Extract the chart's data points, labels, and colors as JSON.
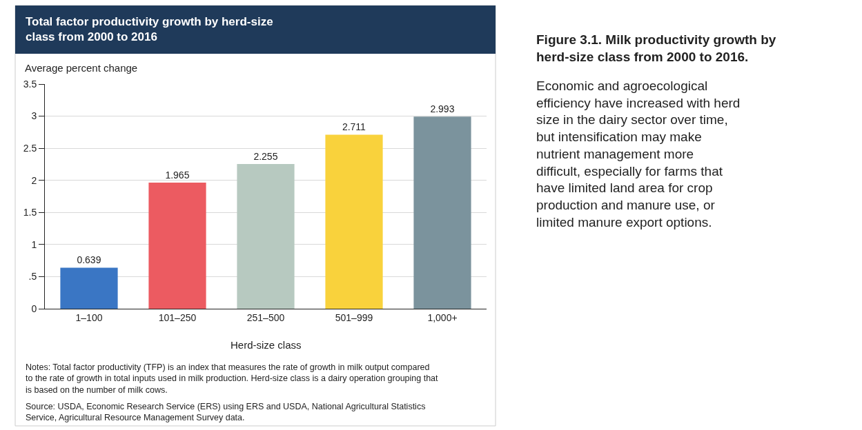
{
  "chart_data": {
    "type": "bar",
    "title": "Total factor productivity growth by herd-size\nclass from 2000 to 2016",
    "ylabel": "Average percent change",
    "xlabel": "Herd-size class",
    "categories": [
      "1–100",
      "101–250",
      "251–500",
      "501–999",
      "1,000+"
    ],
    "values": [
      0.639,
      1.965,
      2.255,
      2.711,
      2.993
    ],
    "colors": [
      "#3a76c4",
      "#ec5b61",
      "#b7c9c0",
      "#f9d23c",
      "#7b939d"
    ],
    "data_labels": true,
    "ylim": [
      0,
      3.5
    ],
    "yticks": [
      0,
      {
        "value": 0.5,
        "label": ".5"
      },
      1,
      1.5,
      2,
      2.5,
      3,
      3.5
    ],
    "grid": "y",
    "annotations": [
      "Notes: Total factor productivity (TFP) is an index that measures the rate of growth in milk output compared\nto the rate of growth in total inputs used in milk production. Herd-size class is a dairy operation grouping that\nis based on the number of milk cows.",
      "Source: USDA, Economic Research Service (ERS) using ERS and USDA, National Agricultural Statistics\nService, Agricultural Resource Management Survey data.",
      "Figure 3.1. Milk productivity growth by\nherd-size class from 2000 to 2016.",
      "Economic and agroecological\nefficiency have increased with herd\nsize in the dairy sector over time,\nbut intensification may make\nnutrient management more\ndifficult, especially for farms that\nhave limited land area for crop\nproduction and manure use, or\nlimited manure export options."
    ]
  }
}
